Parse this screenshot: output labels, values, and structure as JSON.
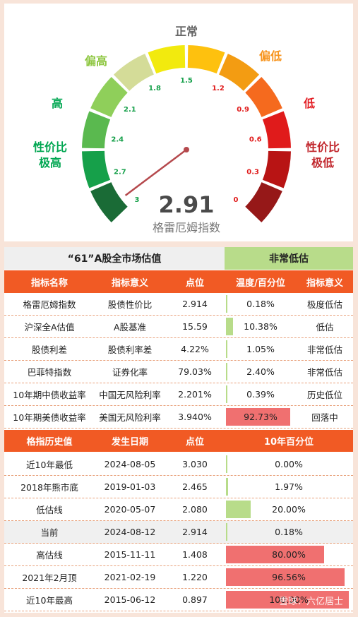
{
  "gauge": {
    "value": "2.91",
    "name": "格雷厄姆指数",
    "needle_value": 2.91,
    "scale_min": 0,
    "scale_max": 3,
    "ticks": [
      "3",
      "2.7",
      "2.4",
      "2.1",
      "1.8",
      "1.5",
      "1.2",
      "0.9",
      "0.6",
      "0.3",
      "0"
    ],
    "zones": [
      {
        "label": "性价比\n极高",
        "color": "#00a651"
      },
      {
        "label": "高",
        "color": "#00a651"
      },
      {
        "label": "偏高",
        "color": "#8dc63f"
      },
      {
        "label": "正常",
        "color": "#666666"
      },
      {
        "label": "偏低",
        "color": "#f7941d"
      },
      {
        "label": "低",
        "color": "#e31e24"
      },
      {
        "label": "性价比\n极低",
        "color": "#c1272d"
      }
    ],
    "segment_colors": [
      "#1a6b36",
      "#16a04a",
      "#5ab94f",
      "#8fcf5a",
      "#d4dc98",
      "#f2ea0e",
      "#fec10e",
      "#f39c12",
      "#f56a1e",
      "#e01b1b",
      "#b81414",
      "#961818"
    ]
  },
  "title_row": {
    "title": "“61”A股全市场估值",
    "status": "非常低估"
  },
  "table1": {
    "headers": [
      "指标名称",
      "指标意义",
      "点位",
      "温度/百分位",
      "指标意义"
    ],
    "rows": [
      {
        "name": "格雷厄姆指数",
        "meaning": "股债性价比",
        "point": "2.914",
        "pct": "0.18%",
        "pct_value": 0.18,
        "level": "极度低估",
        "bar_color": "#b8dc8a"
      },
      {
        "name": "沪深全A估值",
        "meaning": "A股基准",
        "point": "15.59",
        "pct": "10.38%",
        "pct_value": 10.38,
        "level": "低估",
        "bar_color": "#b8dc8a"
      },
      {
        "name": "股债利差",
        "meaning": "股债利率差",
        "point": "4.22%",
        "pct": "1.05%",
        "pct_value": 1.05,
        "level": "非常低估",
        "bar_color": "#b8dc8a"
      },
      {
        "name": "巴菲特指数",
        "meaning": "证券化率",
        "point": "79.03%",
        "pct": "2.40%",
        "pct_value": 2.4,
        "level": "非常低估",
        "bar_color": "#b8dc8a"
      },
      {
        "name": "10年期中债收益率",
        "meaning": "中国无风险利率",
        "point": "2.201%",
        "pct": "0.39%",
        "pct_value": 0.39,
        "level": "历史低位",
        "bar_color": "#b8dc8a"
      },
      {
        "name": "10年期美债收益率",
        "meaning": "美国无风险利率",
        "point": "3.940%",
        "pct": "92.73%",
        "pct_value": 92.73,
        "level": "回落中",
        "bar_color": "#f07070"
      }
    ]
  },
  "table2": {
    "headers": [
      "格指历史值",
      "发生日期",
      "点位",
      "10年百分位"
    ],
    "rows": [
      {
        "name": "近10年最低",
        "date": "2024-08-05",
        "point": "3.030",
        "pct": "0.00%",
        "pct_value": 0,
        "bar_color": "#b8dc8a"
      },
      {
        "name": "2018年熊市底",
        "date": "2019-01-03",
        "point": "2.465",
        "pct": "1.97%",
        "pct_value": 1.97,
        "bar_color": "#b8dc8a"
      },
      {
        "name": "低估线",
        "date": "2020-05-07",
        "point": "2.080",
        "pct": "20.00%",
        "pct_value": 20.0,
        "bar_color": "#b8dc8a"
      },
      {
        "name": "当前",
        "date": "2024-08-12",
        "point": "2.914",
        "pct": "0.18%",
        "pct_value": 0.18,
        "bar_color": "#b8dc8a"
      },
      {
        "name": "高估线",
        "date": "2015-11-11",
        "point": "1.408",
        "pct": "80.00%",
        "pct_value": 80.0,
        "bar_color": "#f07070"
      },
      {
        "name": "2021年2月顶",
        "date": "2021-02-19",
        "point": "1.220",
        "pct": "96.56%",
        "pct_value": 96.56,
        "bar_color": "#f07070"
      },
      {
        "name": "近10年最高",
        "date": "2015-06-12",
        "point": "0.897",
        "pct": "100.00%",
        "pct_value": 100.0,
        "bar_color": "#f07070"
      }
    ]
  },
  "watermark": "雪球：六亿居士",
  "colors": {
    "header": "#f15a24",
    "status_bg": "#b8dc8a",
    "title_bg": "#efefef",
    "highlight_row": "#f0f0f0"
  }
}
